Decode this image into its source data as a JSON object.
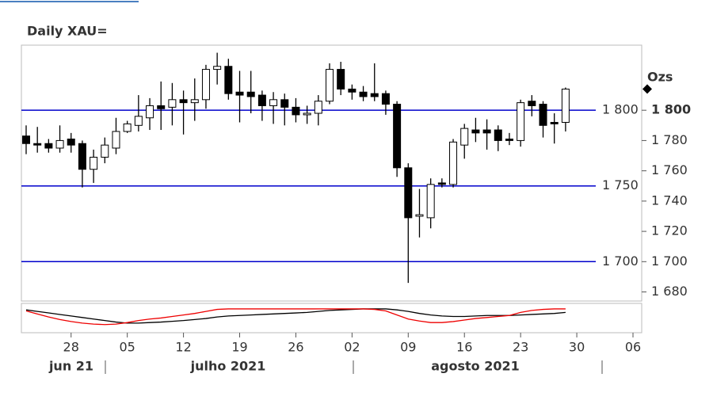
{
  "chart_data": {
    "type": "candlestick",
    "title": "Daily XAU=",
    "unit_label": "Ozs",
    "categories": [
      null,
      null,
      null,
      null,
      "28",
      null,
      null,
      null,
      null,
      "05",
      null,
      null,
      null,
      null,
      "12",
      null,
      null,
      null,
      null,
      "19",
      null,
      null,
      null,
      null,
      "26",
      null,
      null,
      null,
      null,
      "02",
      null,
      null,
      null,
      null,
      "09",
      null,
      null,
      null,
      null,
      "16",
      null,
      null,
      null,
      null,
      "23",
      null,
      null,
      null,
      null,
      "30",
      null,
      null,
      null,
      null,
      "06"
    ],
    "month_labels": [
      "jun 21",
      "julho 2021",
      "agosto 2021"
    ],
    "open": [
      1783,
      1778,
      1778,
      1775,
      1781,
      1778,
      1761,
      1769,
      1775,
      1786,
      1790,
      1795,
      1803,
      1802,
      1807,
      1805,
      1807,
      1827,
      1829,
      1812,
      1812,
      1810,
      1803,
      1807,
      1802,
      1797,
      1798,
      1806,
      1827,
      1814,
      1812,
      1811,
      1811,
      1804,
      1762,
      1730,
      1729,
      1752,
      1751,
      1777,
      1787,
      1787,
      1787,
      1781,
      1780,
      1806,
      1804,
      1792,
      1792,
      null,
      null,
      null,
      null,
      null,
      null
    ],
    "high": [
      1790,
      1789,
      1781,
      1790,
      1785,
      1780,
      1774,
      1782,
      1795,
      1793,
      1810,
      1808,
      1819,
      1818,
      1813,
      1821,
      1830,
      1838,
      1834,
      1826,
      1826,
      1813,
      1812,
      1811,
      1808,
      1803,
      1810,
      1831,
      1832,
      1817,
      1816,
      1831,
      1813,
      1806,
      1765,
      1748,
      1755,
      1755,
      1781,
      1791,
      1795,
      1794,
      1790,
      1785,
      1807,
      1810,
      1806,
      1798,
      1815,
      null,
      null,
      null,
      null,
      null,
      null
    ],
    "low": [
      1771,
      1772,
      1772,
      1772,
      1772,
      1749,
      1752,
      1765,
      1771,
      1785,
      1786,
      1787,
      1787,
      1790,
      1784,
      1793,
      1801,
      1817,
      1807,
      1792,
      1798,
      1793,
      1791,
      1790,
      1792,
      1791,
      1790,
      1804,
      1810,
      1807,
      1806,
      1806,
      1797,
      1756,
      1686,
      1716,
      1722,
      1749,
      1749,
      1768,
      1779,
      1774,
      1773,
      1777,
      1776,
      1796,
      1782,
      1778,
      1786,
      null,
      null,
      null,
      null,
      null,
      null
    ],
    "close": [
      1778,
      1777,
      1775,
      1780,
      1777,
      1761,
      1769,
      1777,
      1786,
      1791,
      1796,
      1803,
      1801,
      1807,
      1805,
      1807,
      1827,
      1829,
      1811,
      1810,
      1809,
      1803,
      1807,
      1802,
      1797,
      1798,
      1806,
      1827,
      1814,
      1812,
      1809,
      1809,
      1804,
      1762,
      1729,
      1731,
      1751,
      1751,
      1779,
      1788,
      1785,
      1785,
      1780,
      1780,
      1805,
      1803,
      1790,
      1791,
      1814,
      null,
      null,
      null,
      null,
      null,
      null
    ],
    "ylim": [
      1674,
      1843
    ],
    "yticks": [
      {
        "value": 1680,
        "label": "1 680"
      },
      {
        "value": 1700,
        "label": "1 700"
      },
      {
        "value": 1720,
        "label": "1 720"
      },
      {
        "value": 1740,
        "label": "1 740"
      },
      {
        "value": 1760,
        "label": "1 760"
      },
      {
        "value": 1780,
        "label": "1 780"
      },
      {
        "value": 1800,
        "label": "1 800"
      }
    ],
    "hlines": [
      {
        "value": 1800,
        "label": "1 800"
      },
      {
        "value": 1750,
        "label": "1 750"
      },
      {
        "value": 1700,
        "label": "1 700"
      }
    ],
    "hline_color": "#0000cc",
    "up_color": "#ffffff",
    "down_color": "#000000",
    "indicator": {
      "ylim": [
        0,
        100
      ],
      "series": [
        {
          "color": "#000000",
          "values": [
            90,
            84,
            78,
            72,
            66,
            60,
            54,
            48,
            42,
            38,
            38,
            40,
            42,
            45,
            48,
            52,
            56,
            62,
            66,
            68,
            70,
            72,
            74,
            76,
            78,
            80,
            84,
            88,
            90,
            92,
            94,
            94,
            94,
            90,
            84,
            76,
            70,
            66,
            64,
            64,
            66,
            68,
            68,
            68,
            70,
            72,
            74,
            76,
            80,
            null,
            null,
            null,
            null,
            null,
            null
          ]
        },
        {
          "color": "#ee0000",
          "values": [
            86,
            74,
            62,
            52,
            44,
            38,
            34,
            32,
            34,
            40,
            48,
            54,
            58,
            64,
            70,
            76,
            84,
            92,
            94,
            94,
            94,
            94,
            94,
            94,
            94,
            94,
            94,
            94,
            94,
            94,
            94,
            92,
            86,
            70,
            54,
            46,
            40,
            40,
            44,
            50,
            56,
            60,
            64,
            68,
            80,
            88,
            92,
            94,
            94,
            null,
            null,
            null,
            null,
            null,
            null
          ]
        }
      ]
    }
  }
}
